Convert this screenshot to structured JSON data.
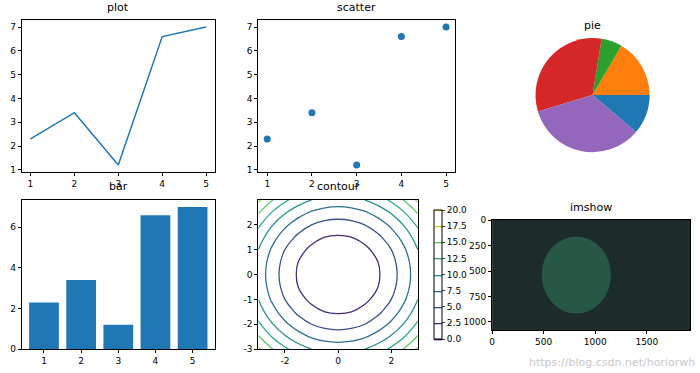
{
  "chart_data": [
    {
      "type": "line",
      "title": "plot",
      "x": [
        1,
        2,
        3,
        4,
        5
      ],
      "values": [
        2.3,
        3.4,
        1.2,
        6.6,
        7.0
      ],
      "color": "#1f77b4",
      "xlim": [
        0.8,
        5.2
      ],
      "ylim": [
        0.91,
        7.29
      ],
      "xticks": [
        1,
        2,
        3,
        4,
        5
      ],
      "yticks": [
        1,
        2,
        3,
        4,
        5,
        6,
        7
      ]
    },
    {
      "type": "scatter",
      "title": "scatter",
      "x": [
        1,
        2,
        3,
        4,
        5
      ],
      "values": [
        2.3,
        3.4,
        1.2,
        6.6,
        7.0
      ],
      "color": "#1f77b4",
      "marker": "circle",
      "xlim": [
        0.8,
        5.2
      ],
      "ylim": [
        0.91,
        7.29
      ],
      "xticks": [
        1,
        2,
        3,
        4,
        5
      ],
      "yticks": [
        1,
        2,
        3,
        4,
        5,
        6,
        7
      ]
    },
    {
      "type": "pie",
      "title": "pie",
      "values": [
        2.3,
        3.4,
        1.2,
        6.6,
        7.0
      ],
      "colors": [
        "#1f77b4",
        "#ff7f0e",
        "#2ca02c",
        "#d62728",
        "#9467bd"
      ]
    },
    {
      "type": "bar",
      "title": "bar",
      "x": [
        1,
        2,
        3,
        4,
        5
      ],
      "values": [
        2.3,
        3.4,
        1.2,
        6.6,
        7.0
      ],
      "color": "#1f77b4",
      "xlim": [
        0.4,
        5.6
      ],
      "ylim": [
        0,
        7.35
      ],
      "xticks": [
        1,
        2,
        3,
        4,
        5
      ],
      "yticks": [
        0,
        2,
        4,
        6
      ]
    },
    {
      "type": "contour",
      "title": "contour",
      "x": [
        -3,
        -2.5,
        -2,
        -1.5,
        -1,
        -0.5,
        0,
        0.5,
        1,
        1.5,
        2,
        2.5,
        3
      ],
      "y": [
        -3,
        -2.5,
        -2,
        -1.5,
        -1,
        -0.5,
        0,
        0.5,
        1,
        1.5,
        2,
        2.5,
        3
      ],
      "z": [
        [
          18,
          15.25,
          13,
          11.25,
          10,
          9.25,
          9,
          9.25,
          10,
          11.25,
          13,
          15.25,
          18
        ],
        [
          15.25,
          12.5,
          10.25,
          8.5,
          7.25,
          6.5,
          6.25,
          6.5,
          7.25,
          8.5,
          10.25,
          12.5,
          15.25
        ],
        [
          13,
          10.25,
          8,
          6.25,
          5,
          4.25,
          4,
          4.25,
          5,
          6.25,
          8,
          10.25,
          13
        ],
        [
          11.25,
          8.5,
          6.25,
          4.5,
          3.25,
          2.5,
          2.25,
          2.5,
          3.25,
          4.5,
          6.25,
          8.5,
          11.25
        ],
        [
          10,
          7.25,
          5,
          3.25,
          2,
          1.25,
          1,
          1.25,
          2,
          3.25,
          5,
          7.25,
          10
        ],
        [
          9.25,
          6.5,
          4.25,
          2.5,
          1.25,
          0.5,
          0.25,
          0.5,
          1.25,
          2.5,
          4.25,
          6.5,
          9.25
        ],
        [
          9,
          6.25,
          4,
          2.25,
          1,
          0.25,
          0,
          0.25,
          1,
          2.25,
          4,
          6.25,
          9
        ],
        [
          9.25,
          6.5,
          4.25,
          2.5,
          1.25,
          0.5,
          0.25,
          0.5,
          1.25,
          2.5,
          4.25,
          6.5,
          9.25
        ],
        [
          10,
          7.25,
          5,
          3.25,
          2,
          1.25,
          1,
          1.25,
          2,
          3.25,
          5,
          7.25,
          10
        ],
        [
          11.25,
          8.5,
          6.25,
          4.5,
          3.25,
          2.5,
          2.25,
          2.5,
          3.25,
          4.5,
          6.25,
          8.5,
          11.25
        ],
        [
          13,
          10.25,
          8,
          6.25,
          5,
          4.25,
          4,
          4.25,
          5,
          6.25,
          8,
          10.25,
          13
        ],
        [
          15.25,
          12.5,
          10.25,
          8.5,
          7.25,
          6.5,
          6.25,
          6.5,
          7.25,
          8.5,
          10.25,
          12.5,
          15.25
        ],
        [
          18,
          15.25,
          13,
          11.25,
          10,
          9.25,
          9,
          9.25,
          10,
          11.25,
          13,
          15.25,
          18
        ]
      ],
      "xlim": [
        -3,
        3
      ],
      "ylim": [
        -3,
        3
      ],
      "xticks": [
        -2,
        0,
        2
      ],
      "yticks": [
        -3,
        -2,
        -1,
        0,
        1,
        2
      ],
      "zlim": [
        0,
        20
      ],
      "zticks": [
        {
          "value": 0,
          "label": "0.0"
        },
        {
          "value": 2.5,
          "label": "2.5"
        },
        {
          "value": 5,
          "label": "5.0"
        },
        {
          "value": 7.5,
          "label": "7.5"
        },
        {
          "value": 10,
          "label": "10.0"
        },
        {
          "value": 12.5,
          "label": "12.5"
        },
        {
          "value": 15,
          "label": "15.0"
        },
        {
          "value": 17.5,
          "label": "17.5"
        },
        {
          "value": 20,
          "label": "20.0"
        }
      ]
    },
    {
      "type": "image",
      "title": "imshow",
      "xlim": [
        0,
        1920
      ],
      "ylim": [
        1080,
        0
      ],
      "xticks": [
        0,
        500,
        1000,
        1500
      ],
      "yticks": [
        0,
        250,
        500,
        750,
        1000
      ],
      "annotations": [
        "https://blog.csdn.net/horiorwh"
      ]
    }
  ]
}
